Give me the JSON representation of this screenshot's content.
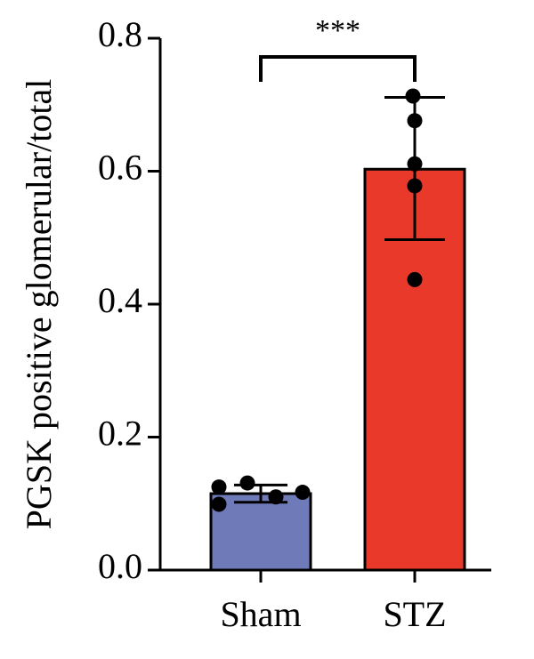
{
  "chart_data": {
    "type": "bar",
    "title": "",
    "xlabel": "",
    "ylabel": "PGSK positive glomerular/total",
    "ylim": [
      0,
      0.8
    ],
    "yticks": [
      0.0,
      0.2,
      0.4,
      0.6,
      0.8
    ],
    "ytick_labels": [
      "0.0",
      "0.2",
      "0.4",
      "0.6",
      "0.8"
    ],
    "categories": [
      "Sham",
      "STZ"
    ],
    "values": [
      0.115,
      0.603
    ],
    "error": [
      {
        "low": 0.102,
        "high": 0.128
      },
      {
        "low": 0.497,
        "high": 0.711
      }
    ],
    "points": [
      [
        0.125,
        0.099,
        0.131,
        0.11,
        0.117
      ],
      [
        0.713,
        0.676,
        0.611,
        0.578,
        0.437
      ]
    ],
    "colors": [
      "#6f7bb8",
      "#e8392a"
    ],
    "significance": {
      "groups": [
        "Sham",
        "STZ"
      ],
      "label": "***"
    },
    "grid": false,
    "legend": "none"
  }
}
